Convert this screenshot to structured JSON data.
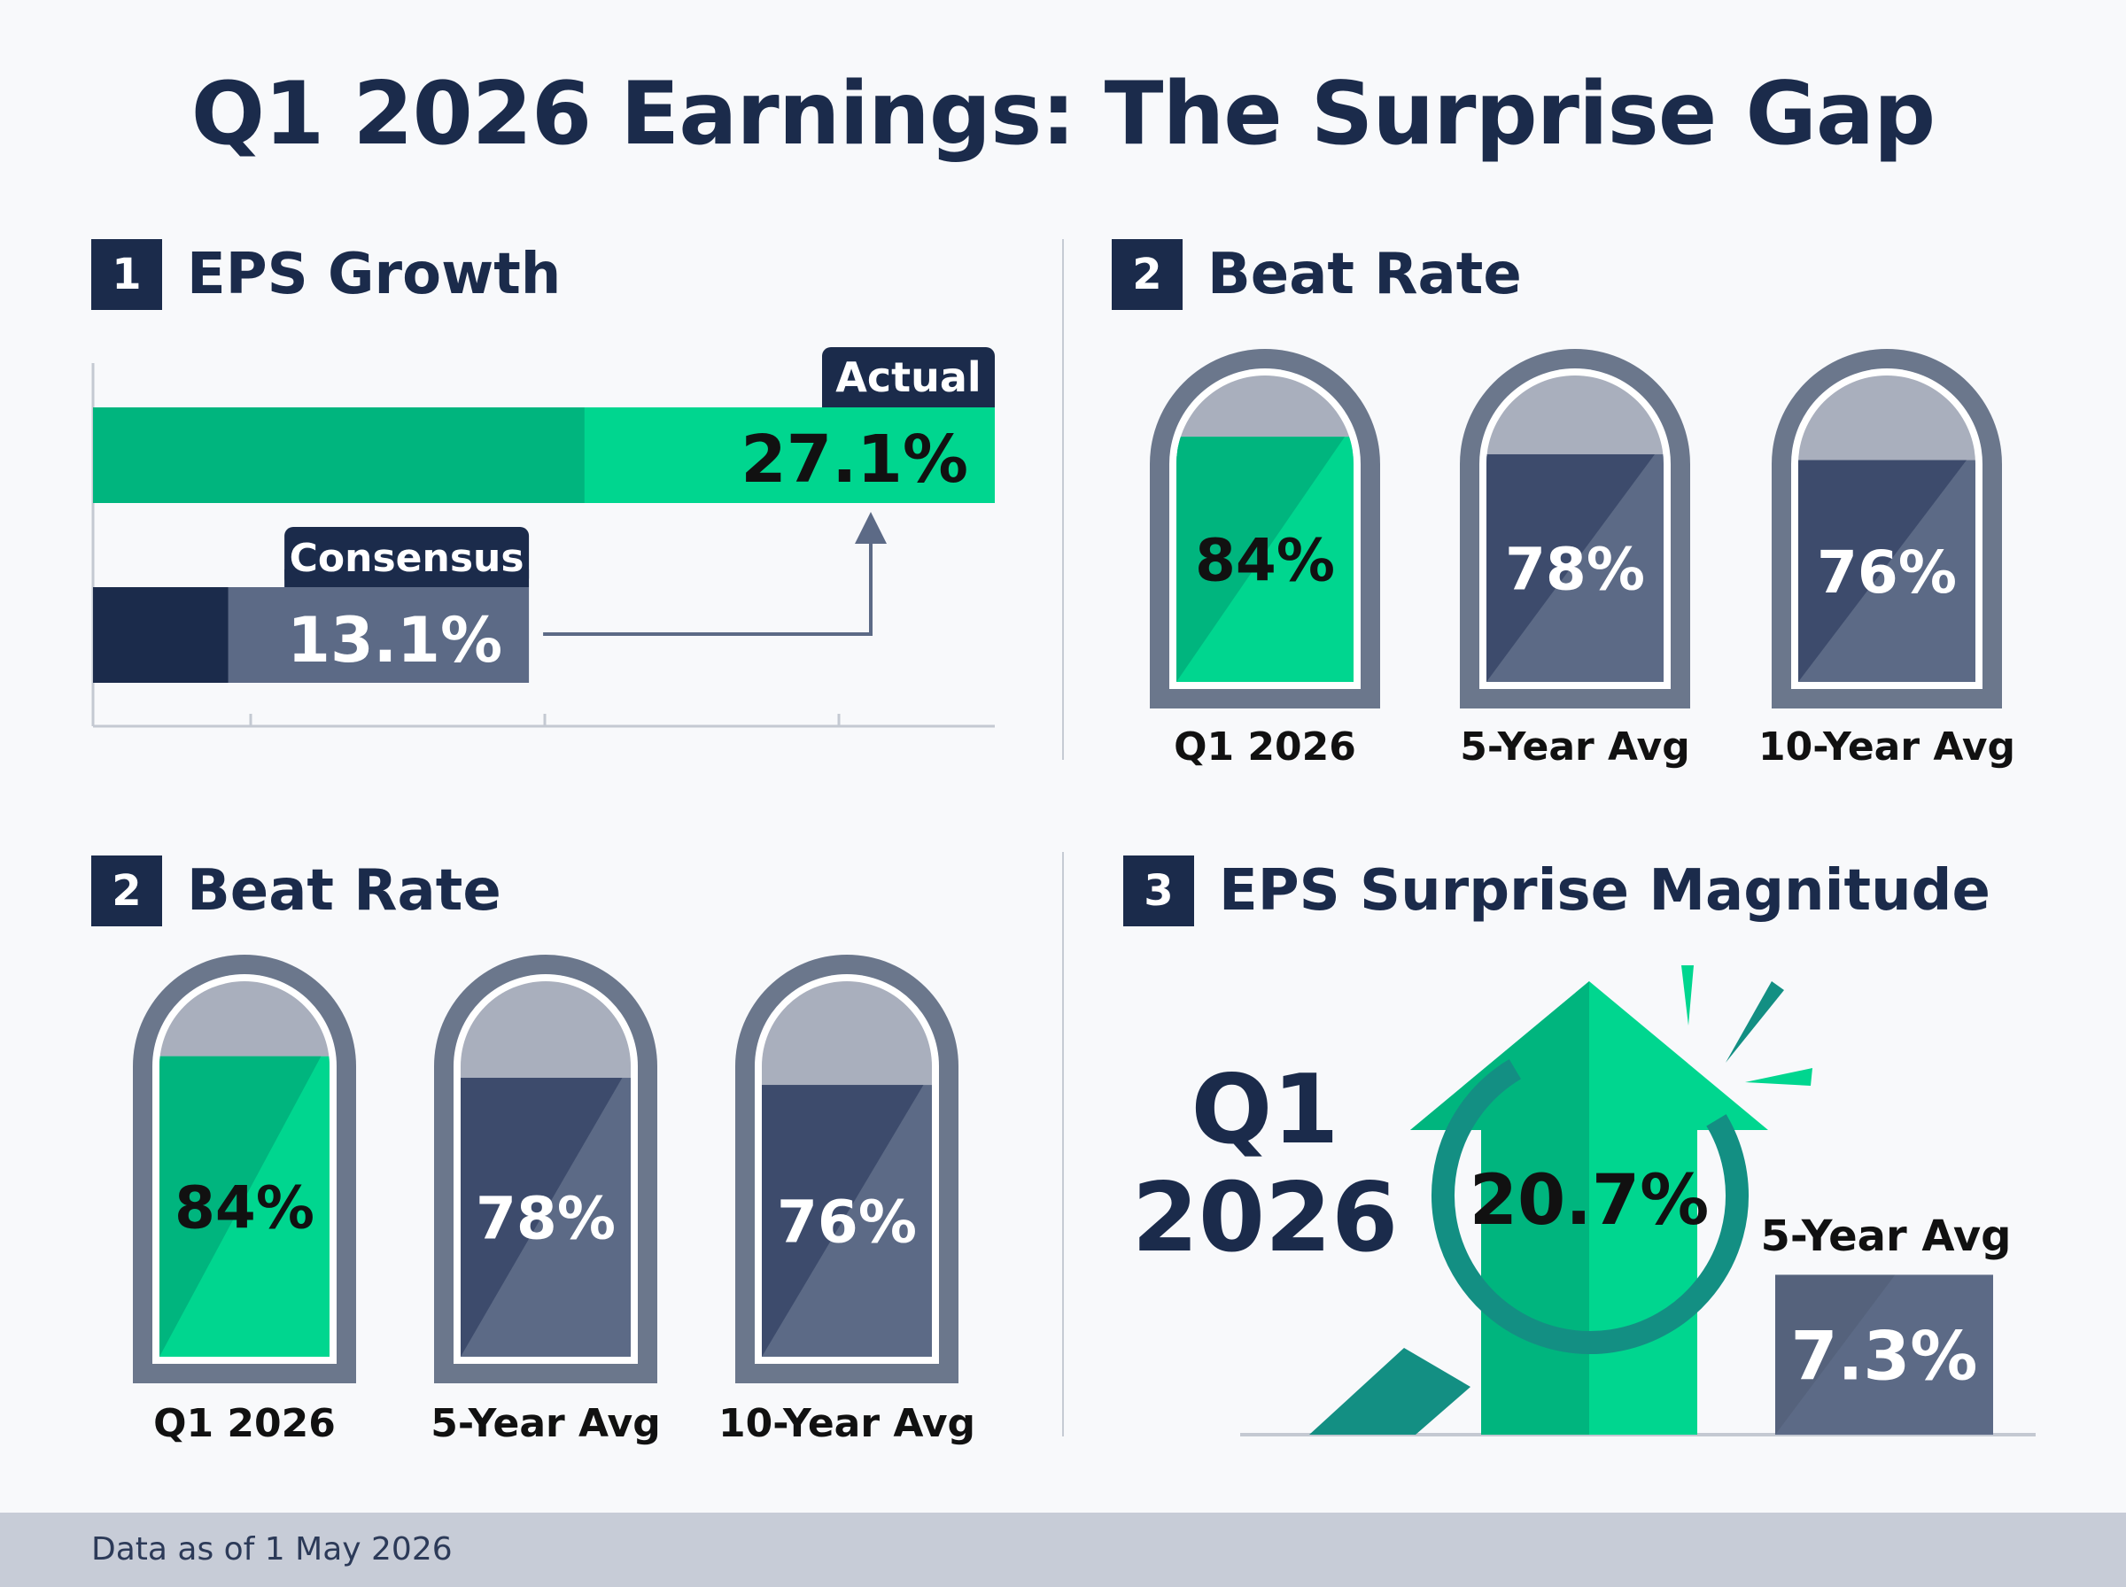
{
  "page": {
    "title": "Q1 2026 Earnings: The Surprise Gap",
    "footer": "Data as of 1 May 2026"
  },
  "colors": {
    "navy": "#1b2b4b",
    "green": "#00d68f",
    "green_dark": "#00b57e",
    "teal": "#138f83",
    "slate": "#5c6a86",
    "slate_dark": "#3d4b6c",
    "gray_top": "#a9afbd",
    "footer_bg": "#c7ccd7"
  },
  "sections": {
    "eps_growth": {
      "badge": "1",
      "title": "EPS Growth"
    },
    "beat_rate_top": {
      "badge": "2",
      "title": "Beat Rate"
    },
    "beat_rate_bottom": {
      "badge": "2",
      "title": "Beat Rate"
    },
    "surprise": {
      "badge": "3",
      "title": "EPS Surprise Magnitude"
    }
  },
  "chart_data": [
    {
      "type": "bar",
      "orientation": "horizontal",
      "title": "EPS Growth",
      "categories": [
        "Actual",
        "Consensus"
      ],
      "values": [
        27.1,
        13.1
      ],
      "value_labels": [
        "27.1%",
        "13.1%"
      ],
      "xlim": [
        0,
        27.1
      ],
      "annotation": "arrow from Consensus to Actual"
    },
    {
      "type": "bar",
      "title": "Beat Rate",
      "categories": [
        "Q1 2026",
        "5-Year Avg",
        "10-Year Avg"
      ],
      "values": [
        84,
        78,
        76
      ],
      "value_labels": [
        "84%",
        "78%",
        "76%"
      ],
      "ylim": [
        0,
        100
      ]
    },
    {
      "type": "bar",
      "title": "Beat Rate",
      "categories": [
        "Q1 2026",
        "5-Year Avg",
        "10-Year Avg"
      ],
      "values": [
        84,
        78,
        76
      ],
      "value_labels": [
        "84%",
        "78%",
        "76%"
      ],
      "ylim": [
        0,
        100
      ]
    },
    {
      "type": "bar",
      "title": "EPS Surprise Magnitude",
      "categories": [
        "Q1 2026",
        "5-Year Avg"
      ],
      "category_label_lines": [
        "Q1",
        "2026"
      ],
      "values": [
        20.7,
        7.3
      ],
      "value_labels": [
        "20.7%",
        "7.3%"
      ],
      "icons": [
        "up-arrow-icon",
        "magnifier-icon",
        "burst-icon"
      ]
    }
  ]
}
